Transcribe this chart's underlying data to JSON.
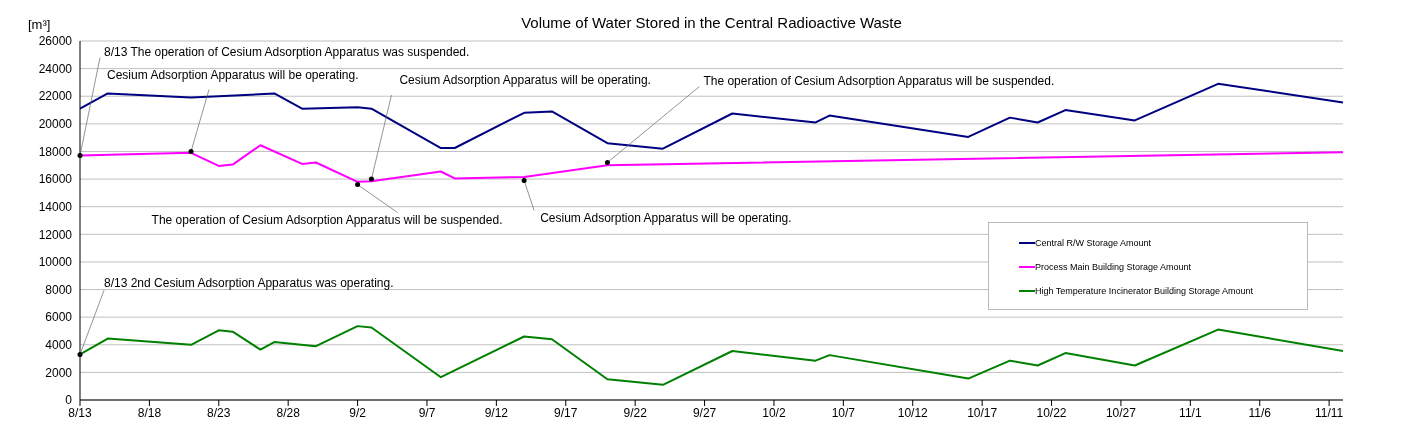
{
  "chart_data": {
    "type": "line",
    "title": "Volume of Water Stored in the Central Radioactive Waste",
    "ylabel": "[m³]",
    "xlim": [
      "--08-13",
      "--11-12"
    ],
    "xticks": [
      {
        "value": "--08-13",
        "label": "8/13"
      },
      {
        "value": "--08-18",
        "label": "8/18"
      },
      {
        "value": "--08-23",
        "label": "8/23"
      },
      {
        "value": "--08-28",
        "label": "8/28"
      },
      {
        "value": "--09-02",
        "label": "9/2"
      },
      {
        "value": "--09-07",
        "label": "9/7"
      },
      {
        "value": "--09-12",
        "label": "9/12"
      },
      {
        "value": "--09-17",
        "label": "9/17"
      },
      {
        "value": "--09-22",
        "label": "9/22"
      },
      {
        "value": "--09-27",
        "label": "9/27"
      },
      {
        "value": "--10-02",
        "label": "10/2"
      },
      {
        "value": "--10-07",
        "label": "10/7"
      },
      {
        "value": "--10-12",
        "label": "10/12"
      },
      {
        "value": "--10-17",
        "label": "10/17"
      },
      {
        "value": "--10-22",
        "label": "10/22"
      },
      {
        "value": "--10-27",
        "label": "10/27"
      },
      {
        "value": "--11-01",
        "label": "11/1"
      },
      {
        "value": "--11-06",
        "label": "11/6"
      },
      {
        "value": "--11-11",
        "label": "11/11"
      }
    ],
    "ylim": [
      0,
      26000
    ],
    "yticks": [
      0,
      2000,
      4000,
      6000,
      8000,
      10000,
      12000,
      14000,
      16000,
      18000,
      20000,
      22000,
      24000,
      26000
    ],
    "grid": "y",
    "legend": "right",
    "marker": "none",
    "line_style": "solid",
    "series": [
      {
        "name": "Central R/W Storage Amount",
        "color": "#000080",
        "x": [
          "--08-13",
          "--08-15",
          "--08-21",
          "--08-23",
          "--08-27",
          "--08-29",
          "--09-02",
          "--09-03",
          "--09-08",
          "--09-09",
          "--09-14",
          "--09-16",
          "--09-20",
          "--09-24",
          "--09-29",
          "--10-05",
          "--10-06",
          "--10-16",
          "--10-19",
          "--10-21",
          "--10-23",
          "--10-28",
          "--11-03",
          "--11-12"
        ],
        "values": [
          21100,
          22200,
          21900,
          22000,
          22200,
          21100,
          21200,
          21100,
          18250,
          18250,
          20800,
          20900,
          18600,
          18200,
          20750,
          20100,
          20600,
          19050,
          20450,
          20100,
          21000,
          20250,
          22900,
          21550
        ]
      },
      {
        "name": "Process Main Building Storage Amount",
        "color": "#ff00ff",
        "x": [
          "--08-13",
          "--08-21",
          "--08-23",
          "--08-24",
          "--08-26",
          "--08-29",
          "--08-30",
          "--09-02",
          "--09-03",
          "--09-08",
          "--09-09",
          "--09-14",
          "--09-20",
          "--11-12"
        ],
        "values": [
          17700,
          17900,
          16950,
          17050,
          18450,
          17100,
          17200,
          15800,
          15850,
          16550,
          16050,
          16150,
          17000,
          17950
        ]
      },
      {
        "name": "High Temperature Incinerator Building Storage Amount",
        "color": "#008000",
        "x": [
          "--08-13",
          "--08-15",
          "--08-21",
          "--08-23",
          "--08-24",
          "--08-26",
          "--08-27",
          "--08-30",
          "--09-02",
          "--09-03",
          "--09-08",
          "--09-14",
          "--09-16",
          "--09-20",
          "--09-24",
          "--09-29",
          "--10-05",
          "--10-06",
          "--10-16",
          "--10-19",
          "--10-21",
          "--10-23",
          "--10-28",
          "--11-03",
          "--11-12"
        ],
        "values": [
          3300,
          4450,
          4000,
          5050,
          4950,
          3650,
          4200,
          3900,
          5350,
          5250,
          1650,
          4600,
          4400,
          1500,
          1100,
          3550,
          2850,
          3250,
          1550,
          2850,
          2500,
          3400,
          2500,
          5100,
          3550
        ]
      }
    ],
    "annotations": [
      {
        "text": "8/13  The operation of Cesium Adsorption Apparatus was suspended.",
        "x": "--08-13",
        "y": 17700
      },
      {
        "text": "Cesium Adsorption Apparatus will be operating.",
        "x": "--08-21",
        "y": 18000
      },
      {
        "text": "Cesium Adsorption Apparatus will be operating.",
        "x": "--09-03",
        "y": 16000
      },
      {
        "text": "The operation of Cesium Adsorption Apparatus will be suspended.",
        "x": "--09-02",
        "y": 15600
      },
      {
        "text": "The operation of Cesium Adsorption Apparatus will be suspended.",
        "x": "--09-20",
        "y": 17200
      },
      {
        "text": "Cesium Adsorption Apparatus will be operating.",
        "x": "--09-14",
        "y": 15900
      },
      {
        "text": "8/13  2nd Cesium Adsorption Apparatus was operating.",
        "x": "--08-13",
        "y": 3300
      }
    ]
  }
}
